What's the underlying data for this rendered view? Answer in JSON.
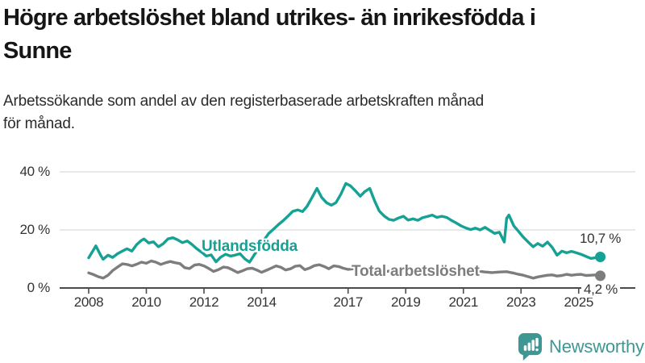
{
  "title": "Högre arbetslöshet bland utrikes- än inrikesfödda i Sunne",
  "title_lines": [
    "Högre arbetslöshet bland utrikes- än inrikesfödda i",
    "Sunne"
  ],
  "subtitle": "Arbetssökande som andel av den registerbaserade arbetskraften månad för månad.",
  "subtitle_lines": [
    "Arbetssökande som andel av den registerbaserade arbetskraften månad",
    "för månad."
  ],
  "branding": {
    "logo_text": "Newsworthy",
    "logo_icon": "newsworthy-bars-icon",
    "logo_color": "#3e9792"
  },
  "colors": {
    "foreign_born_line": "#16a195",
    "total_line": "#7d7d7d",
    "grid": "#d9d9d9",
    "axis": "#4b4b4b",
    "text": "#333333"
  },
  "chart_data": {
    "type": "line",
    "title": "Högre arbetslöshet bland utrikes- än inrikesfödda i Sunne",
    "subtitle": "Arbetssökande som andel av den registerbaserade arbetskraften månad för månad.",
    "unit": "%",
    "grid": "horizontal",
    "legend_position": "inline-annotations",
    "x_axis": {
      "range": [
        2008,
        2025.75
      ],
      "ticks": [
        {
          "value": 2008,
          "label": "2008"
        },
        {
          "value": 2010,
          "label": "2010"
        },
        {
          "value": 2012,
          "label": "2012"
        },
        {
          "value": 2014,
          "label": "2014"
        },
        {
          "value": 2017,
          "label": "2017"
        },
        {
          "value": 2019,
          "label": "2019"
        },
        {
          "value": 2021,
          "label": "2021"
        },
        {
          "value": 2023,
          "label": "2023"
        },
        {
          "value": 2025,
          "label": "2025"
        }
      ]
    },
    "y_axis": {
      "range": [
        0,
        40
      ],
      "ticks": [
        {
          "value": 0,
          "label": "0 %"
        },
        {
          "value": 20,
          "label": "20 %"
        },
        {
          "value": 40,
          "label": "40 %"
        }
      ]
    },
    "series": [
      {
        "name": "Utlandsfödda",
        "color": "#16a195",
        "end_label": "10,7 %",
        "end_value": 10.7,
        "points": [
          [
            2008.0,
            10.4
          ],
          [
            2008.17,
            13.2
          ],
          [
            2008.25,
            14.5
          ],
          [
            2008.42,
            11.2
          ],
          [
            2008.5,
            9.9
          ],
          [
            2008.67,
            11.3
          ],
          [
            2008.83,
            10.5
          ],
          [
            2009.0,
            11.8
          ],
          [
            2009.17,
            12.7
          ],
          [
            2009.33,
            13.5
          ],
          [
            2009.5,
            12.7
          ],
          [
            2009.67,
            15.0
          ],
          [
            2009.83,
            16.4
          ],
          [
            2009.92,
            16.9
          ],
          [
            2010.08,
            15.5
          ],
          [
            2010.25,
            15.9
          ],
          [
            2010.42,
            14.2
          ],
          [
            2010.58,
            15.2
          ],
          [
            2010.75,
            16.9
          ],
          [
            2010.92,
            17.3
          ],
          [
            2011.08,
            16.6
          ],
          [
            2011.25,
            15.6
          ],
          [
            2011.42,
            16.2
          ],
          [
            2011.58,
            15.0
          ],
          [
            2011.75,
            13.5
          ],
          [
            2011.92,
            12.3
          ],
          [
            2012.08,
            11.0
          ],
          [
            2012.25,
            11.4
          ],
          [
            2012.42,
            9.0
          ],
          [
            2012.58,
            10.6
          ],
          [
            2012.75,
            11.6
          ],
          [
            2012.92,
            11.0
          ],
          [
            2013.08,
            11.3
          ],
          [
            2013.25,
            11.8
          ],
          [
            2013.42,
            10.0
          ],
          [
            2013.58,
            8.9
          ],
          [
            2013.75,
            11.5
          ],
          [
            2013.92,
            14.0
          ],
          [
            2014.08,
            16.5
          ],
          [
            2014.25,
            18.8
          ],
          [
            2014.42,
            20.3
          ],
          [
            2014.58,
            21.8
          ],
          [
            2014.75,
            23.2
          ],
          [
            2014.92,
            24.8
          ],
          [
            2015.08,
            26.4
          ],
          [
            2015.25,
            26.9
          ],
          [
            2015.42,
            26.3
          ],
          [
            2015.58,
            28.2
          ],
          [
            2015.75,
            31.2
          ],
          [
            2015.92,
            34.3
          ],
          [
            2016.08,
            31.2
          ],
          [
            2016.25,
            29.4
          ],
          [
            2016.42,
            28.5
          ],
          [
            2016.58,
            29.4
          ],
          [
            2016.75,
            32.3
          ],
          [
            2016.92,
            36.0
          ],
          [
            2017.08,
            35.2
          ],
          [
            2017.25,
            33.5
          ],
          [
            2017.42,
            31.6
          ],
          [
            2017.58,
            33.2
          ],
          [
            2017.75,
            34.3
          ],
          [
            2017.92,
            30.0
          ],
          [
            2018.08,
            26.5
          ],
          [
            2018.25,
            24.8
          ],
          [
            2018.42,
            23.6
          ],
          [
            2018.58,
            23.3
          ],
          [
            2018.75,
            24.1
          ],
          [
            2018.92,
            24.7
          ],
          [
            2019.08,
            23.4
          ],
          [
            2019.25,
            23.8
          ],
          [
            2019.42,
            23.3
          ],
          [
            2019.58,
            24.2
          ],
          [
            2019.75,
            24.6
          ],
          [
            2019.92,
            25.1
          ],
          [
            2020.08,
            24.3
          ],
          [
            2020.25,
            24.7
          ],
          [
            2020.42,
            24.3
          ],
          [
            2020.58,
            23.3
          ],
          [
            2020.75,
            22.4
          ],
          [
            2020.92,
            21.4
          ],
          [
            2021.08,
            20.7
          ],
          [
            2021.25,
            20.1
          ],
          [
            2021.42,
            20.6
          ],
          [
            2021.58,
            20.0
          ],
          [
            2021.75,
            20.9
          ],
          [
            2021.92,
            19.8
          ],
          [
            2022.08,
            18.8
          ],
          [
            2022.25,
            19.2
          ],
          [
            2022.42,
            15.8
          ],
          [
            2022.5,
            24.0
          ],
          [
            2022.58,
            25.1
          ],
          [
            2022.75,
            21.4
          ],
          [
            2022.92,
            19.4
          ],
          [
            2023.08,
            17.5
          ],
          [
            2023.25,
            15.8
          ],
          [
            2023.42,
            14.2
          ],
          [
            2023.58,
            15.3
          ],
          [
            2023.75,
            14.4
          ],
          [
            2023.92,
            15.8
          ],
          [
            2024.08,
            14.0
          ],
          [
            2024.25,
            11.3
          ],
          [
            2024.42,
            12.7
          ],
          [
            2024.58,
            12.1
          ],
          [
            2024.75,
            12.6
          ],
          [
            2024.92,
            12.1
          ],
          [
            2025.08,
            11.6
          ],
          [
            2025.25,
            10.9
          ],
          [
            2025.42,
            10.2
          ],
          [
            2025.58,
            10.4
          ],
          [
            2025.75,
            10.7
          ]
        ]
      },
      {
        "name": "Total arbetslöshet",
        "color": "#7d7d7d",
        "end_label": "4,2 %",
        "end_value": 4.2,
        "points": [
          [
            2008.0,
            5.2
          ],
          [
            2008.17,
            4.6
          ],
          [
            2008.33,
            3.9
          ],
          [
            2008.5,
            3.4
          ],
          [
            2008.67,
            4.4
          ],
          [
            2008.83,
            6.0
          ],
          [
            2009.0,
            7.2
          ],
          [
            2009.17,
            8.3
          ],
          [
            2009.33,
            8.1
          ],
          [
            2009.5,
            7.6
          ],
          [
            2009.67,
            8.2
          ],
          [
            2009.83,
            8.9
          ],
          [
            2010.0,
            8.5
          ],
          [
            2010.17,
            9.3
          ],
          [
            2010.33,
            8.9
          ],
          [
            2010.5,
            8.1
          ],
          [
            2010.67,
            8.7
          ],
          [
            2010.83,
            9.1
          ],
          [
            2011.0,
            8.7
          ],
          [
            2011.17,
            8.4
          ],
          [
            2011.33,
            7.0
          ],
          [
            2011.5,
            6.7
          ],
          [
            2011.67,
            7.9
          ],
          [
            2011.83,
            8.1
          ],
          [
            2012.0,
            7.6
          ],
          [
            2012.17,
            6.7
          ],
          [
            2012.33,
            5.7
          ],
          [
            2012.5,
            6.3
          ],
          [
            2012.67,
            7.2
          ],
          [
            2012.83,
            7.0
          ],
          [
            2013.0,
            6.2
          ],
          [
            2013.17,
            5.3
          ],
          [
            2013.33,
            5.9
          ],
          [
            2013.5,
            6.6
          ],
          [
            2013.67,
            6.8
          ],
          [
            2013.83,
            6.2
          ],
          [
            2014.0,
            5.4
          ],
          [
            2014.17,
            6.1
          ],
          [
            2014.33,
            6.8
          ],
          [
            2014.5,
            7.6
          ],
          [
            2014.67,
            7.1
          ],
          [
            2014.83,
            6.2
          ],
          [
            2015.0,
            6.6
          ],
          [
            2015.17,
            7.5
          ],
          [
            2015.33,
            7.7
          ],
          [
            2015.5,
            6.3
          ],
          [
            2015.67,
            6.9
          ],
          [
            2015.83,
            7.7
          ],
          [
            2016.0,
            8.0
          ],
          [
            2016.17,
            7.4
          ],
          [
            2016.33,
            6.6
          ],
          [
            2016.5,
            7.6
          ],
          [
            2016.67,
            7.4
          ],
          [
            2016.83,
            6.8
          ],
          [
            2017.0,
            6.4
          ],
          [
            2017.25,
            6.7
          ],
          [
            2017.5,
            7.0
          ],
          [
            2017.75,
            6.4
          ],
          [
            2018.0,
            5.9
          ],
          [
            2018.25,
            5.6
          ],
          [
            2018.5,
            5.9
          ],
          [
            2018.75,
            6.1
          ],
          [
            2019.0,
            5.7
          ],
          [
            2019.25,
            5.5
          ],
          [
            2019.5,
            5.8
          ],
          [
            2019.75,
            6.1
          ],
          [
            2020.0,
            6.3
          ],
          [
            2020.25,
            6.6
          ],
          [
            2020.5,
            6.3
          ],
          [
            2020.75,
            6.0
          ],
          [
            2021.0,
            5.8
          ],
          [
            2021.25,
            5.6
          ],
          [
            2021.5,
            5.8
          ],
          [
            2021.75,
            5.5
          ],
          [
            2022.0,
            5.3
          ],
          [
            2022.25,
            5.5
          ],
          [
            2022.5,
            5.6
          ],
          [
            2022.75,
            5.1
          ],
          [
            2022.92,
            4.7
          ],
          [
            2023.08,
            4.4
          ],
          [
            2023.25,
            3.9
          ],
          [
            2023.42,
            3.4
          ],
          [
            2023.58,
            3.8
          ],
          [
            2023.75,
            4.1
          ],
          [
            2023.92,
            4.4
          ],
          [
            2024.08,
            4.5
          ],
          [
            2024.25,
            4.1
          ],
          [
            2024.42,
            4.3
          ],
          [
            2024.58,
            4.7
          ],
          [
            2024.75,
            4.4
          ],
          [
            2024.92,
            4.6
          ],
          [
            2025.08,
            4.7
          ],
          [
            2025.25,
            4.3
          ],
          [
            2025.42,
            4.4
          ],
          [
            2025.58,
            4.5
          ],
          [
            2025.75,
            4.2
          ]
        ]
      }
    ]
  }
}
